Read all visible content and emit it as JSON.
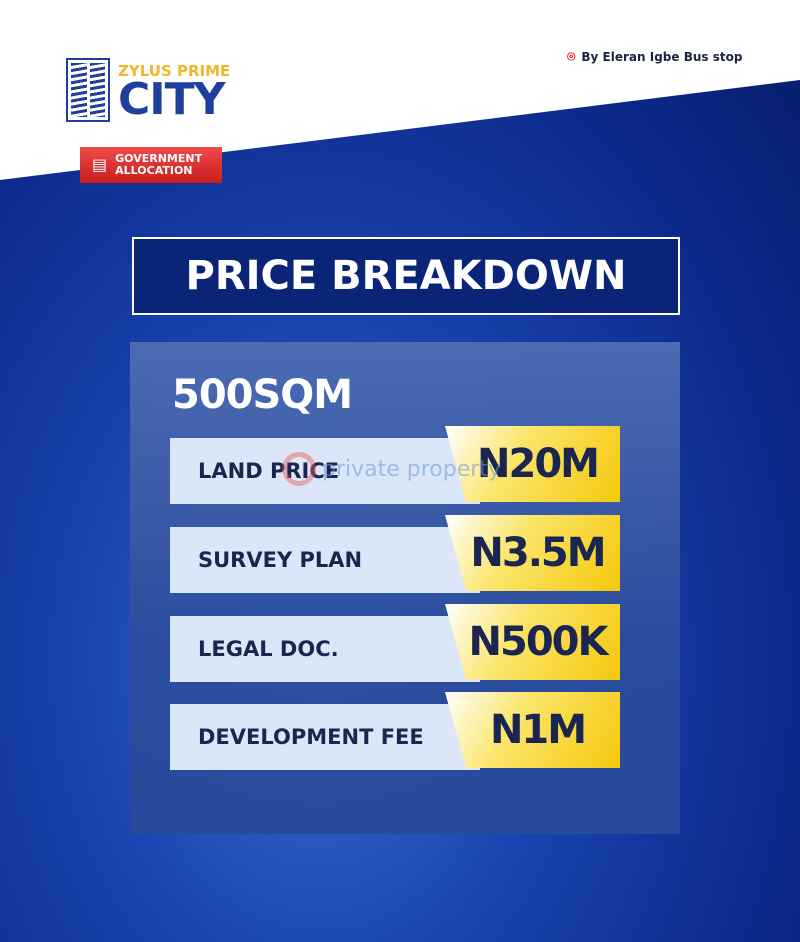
{
  "brand": {
    "top": "ZYLUS PRIME",
    "main": "CITY"
  },
  "location": {
    "icon": "map-pin-icon",
    "text": "By Eleran Igbe Bus stop"
  },
  "badge": {
    "icon": "document-icon",
    "line1": "GOVERNMENT",
    "line2": "ALLOCATION"
  },
  "title": "PRICE BREAKDOWN",
  "plot_size": "500SQM",
  "rows": [
    {
      "label": "LAND PRICE",
      "value": "N20M"
    },
    {
      "label": "SURVEY PLAN",
      "value": "N3.5M"
    },
    {
      "label": "LEGAL DOC.",
      "value": "N500K"
    },
    {
      "label": "DEVELOPMENT FEE",
      "value": "N1M"
    }
  ],
  "watermark": "private property",
  "colors": {
    "brand_blue": "#1f3f9e",
    "brand_gold": "#f2b62a",
    "badge_red": "#d92a2a",
    "value_yellow": "#f4c80c"
  }
}
